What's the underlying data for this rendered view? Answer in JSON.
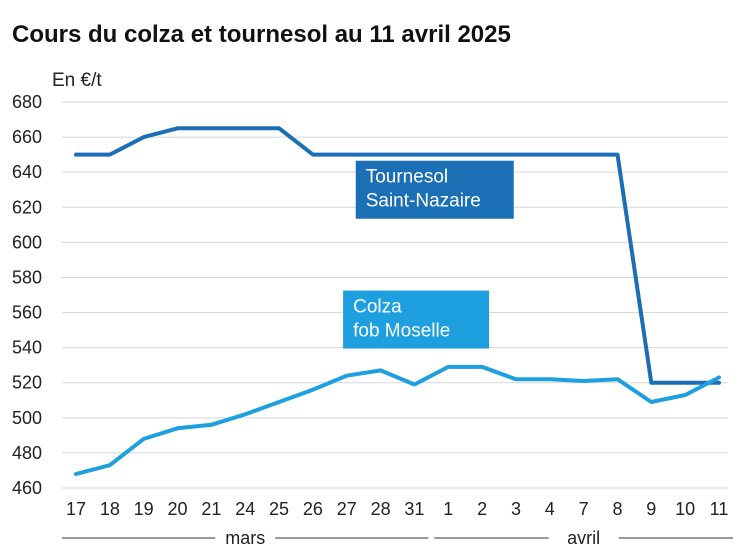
{
  "chart_data": {
    "type": "line",
    "title": "Cours du colza et tournesol au 11 avril 2025",
    "ylabel": "En €/t",
    "ylim": [
      460,
      680
    ],
    "yticks": [
      460,
      480,
      500,
      520,
      540,
      560,
      580,
      600,
      620,
      640,
      660,
      680
    ],
    "grid": true,
    "categories": [
      "17",
      "18",
      "19",
      "20",
      "21",
      "24",
      "25",
      "26",
      "27",
      "28",
      "31",
      "1",
      "2",
      "3",
      "4",
      "7",
      "8",
      "9",
      "10",
      "11"
    ],
    "month_groups": [
      {
        "label": "mars",
        "from": 0,
        "to": 10
      },
      {
        "label": "avril",
        "from": 11,
        "to": 19
      }
    ],
    "series": [
      {
        "name": "Tournesol Saint-Nazaire",
        "label_lines": [
          "Tournesol",
          "Saint-Nazaire"
        ],
        "color": "#1a6fb5",
        "values": [
          650,
          650,
          660,
          665,
          665,
          665,
          665,
          650,
          650,
          650,
          650,
          650,
          650,
          650,
          650,
          650,
          650,
          520,
          520,
          520
        ]
      },
      {
        "name": "Colza fob Moselle",
        "label_lines": [
          "Colza",
          "fob Moselle"
        ],
        "color": "#1ea0e0",
        "values": [
          468,
          473,
          488,
          494,
          496,
          502,
          509,
          516,
          524,
          527,
          519,
          529,
          529,
          522,
          522,
          521,
          522,
          509,
          513,
          523
        ]
      }
    ]
  }
}
